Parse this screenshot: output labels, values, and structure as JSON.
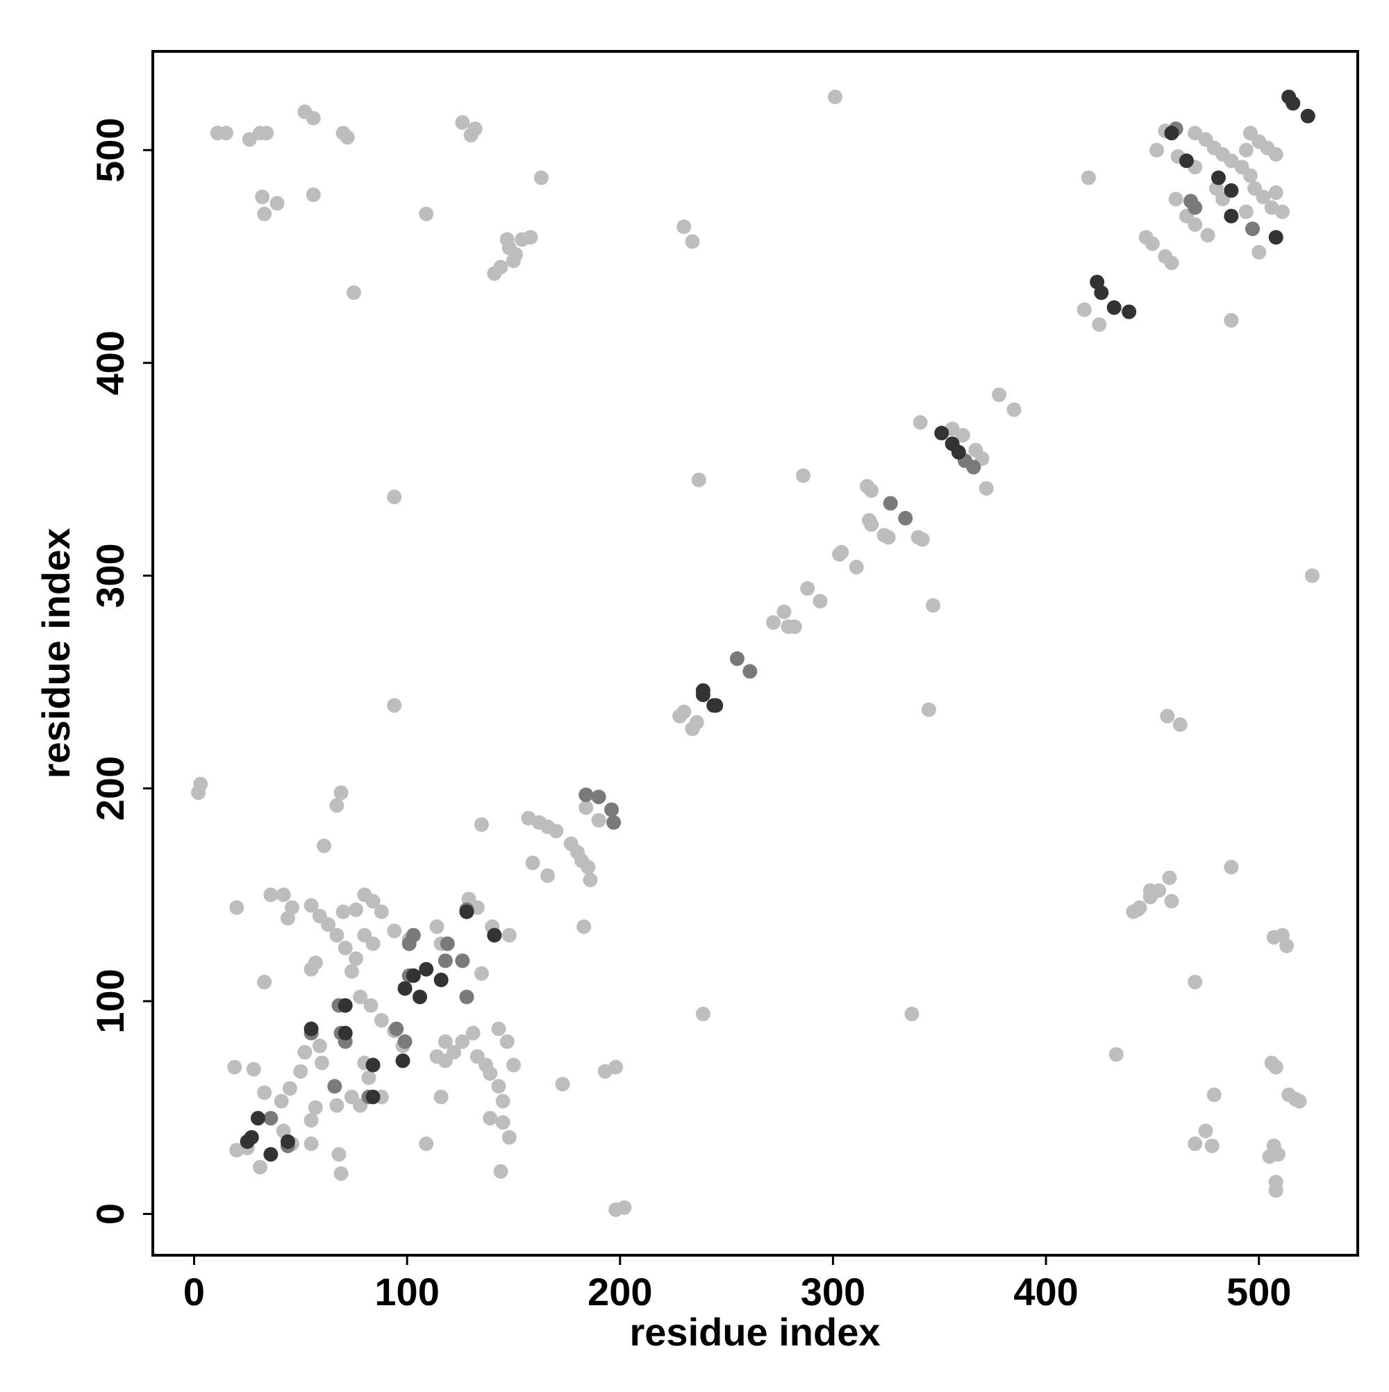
{
  "chart_data": {
    "type": "scatter",
    "xlabel": "residue index",
    "ylabel": "residue index",
    "xlim": [
      -19.4,
      546.4
    ],
    "ylim": [
      -19.4,
      546.4
    ],
    "xticks": [
      0,
      100,
      200,
      300,
      400,
      500
    ],
    "yticks": [
      0,
      100,
      200,
      300,
      400,
      500
    ],
    "grid": false,
    "series": [
      {
        "color": "#bdbdbd",
        "x": [
          11,
          15,
          26,
          31,
          34,
          52,
          56,
          70,
          72,
          32,
          33,
          39,
          56,
          109,
          126,
          132,
          130,
          163,
          141,
          144,
          147,
          151,
          154,
          158,
          150,
          148,
          75,
          230,
          234,
          301,
          94,
          94,
          2,
          3,
          69,
          67,
          61,
          20,
          33,
          19,
          28,
          68,
          69,
          109,
          144,
          173,
          193,
          198,
          198,
          202,
          135,
          183,
          239,
          337,
          433,
          487,
          470,
          507,
          511,
          513,
          479,
          475,
          470,
          478,
          506,
          508,
          514,
          517,
          519,
          507,
          505,
          509,
          508,
          508,
          457,
          463,
          345,
          347,
          237,
          286,
          341,
          525,
          378,
          385,
          372,
          316,
          318,
          318,
          317,
          324,
          326,
          340,
          342,
          304,
          303,
          311,
          288,
          294,
          272,
          277,
          279,
          282,
          228,
          230,
          234,
          236,
          418,
          425,
          420,
          487,
          447,
          450,
          456,
          459,
          452,
          500,
          441,
          444,
          449,
          453,
          458,
          459,
          449,
          443,
          184,
          190,
          186,
          159,
          166,
          157,
          162,
          166,
          170,
          177,
          180,
          182,
          185,
          456,
          470,
          475,
          479,
          483,
          487,
          492,
          496,
          498,
          502,
          506,
          511,
          496,
          500,
          504,
          508,
          462,
          461,
          466,
          470,
          476,
          494,
          497,
          483,
          480,
          494,
          508,
          470,
          356,
          361,
          367,
          370,
          36,
          42,
          46,
          44,
          55,
          59,
          63,
          67,
          71,
          76,
          74,
          70,
          76,
          80,
          84,
          88,
          94,
          101,
          55,
          57,
          80,
          84,
          114,
          118,
          122,
          126,
          131,
          133,
          137,
          139,
          143,
          145,
          118,
          143,
          147,
          150,
          139,
          145,
          148,
          116,
          114,
          116,
          129,
          133,
          140,
          148,
          135,
          33,
          41,
          45,
          42,
          46,
          55,
          55,
          57,
          50,
          52,
          60,
          20,
          25,
          31,
          67,
          74,
          78,
          78,
          83,
          88,
          94,
          98,
          80,
          82,
          88,
          59
        ],
        "values": [
          508,
          508,
          505,
          508,
          508,
          518,
          515,
          508,
          506,
          478,
          470,
          475,
          479,
          470,
          513,
          510,
          507,
          487,
          442,
          445,
          458,
          451,
          458,
          459,
          448,
          454,
          433,
          464,
          457,
          525,
          337,
          239,
          198,
          202,
          198,
          192,
          173,
          144,
          109,
          69,
          68,
          28,
          19,
          33,
          20,
          61,
          67,
          69,
          2,
          3,
          183,
          135,
          94,
          94,
          75,
          163,
          109,
          130,
          131,
          126,
          56,
          39,
          33,
          32,
          71,
          69,
          56,
          54,
          53,
          32,
          27,
          28,
          15,
          11,
          234,
          230,
          237,
          286,
          345,
          347,
          372,
          300,
          385,
          378,
          341,
          342,
          340,
          324,
          326,
          319,
          318,
          318,
          317,
          311,
          310,
          304,
          294,
          288,
          278,
          283,
          276,
          276,
          234,
          236,
          228,
          231,
          425,
          418,
          487,
          420,
          459,
          456,
          450,
          447,
          500,
          452,
          142,
          144,
          149,
          152,
          158,
          147,
          152,
          143,
          191,
          185,
          157,
          165,
          159,
          186,
          184,
          182,
          180,
          174,
          170,
          166,
          163,
          509,
          508,
          505,
          501,
          498,
          495,
          492,
          488,
          482,
          478,
          473,
          471,
          508,
          504,
          501,
          498,
          497,
          477,
          469,
          465,
          460,
          471,
          463,
          477,
          482,
          500,
          480,
          492,
          369,
          366,
          359,
          355,
          150,
          150,
          144,
          139,
          145,
          140,
          136,
          131,
          125,
          120,
          114,
          142,
          143,
          150,
          147,
          142,
          133,
          129,
          115,
          118,
          131,
          127,
          74,
          72,
          76,
          81,
          85,
          74,
          70,
          66,
          60,
          53,
          81,
          87,
          81,
          70,
          45,
          43,
          36,
          55,
          135,
          127,
          148,
          144,
          135,
          131,
          113,
          57,
          53,
          59,
          39,
          33,
          33,
          44,
          50,
          67,
          76,
          71,
          30,
          31,
          22,
          51,
          55,
          51,
          102,
          98,
          91,
          86,
          79,
          71,
          64,
          55,
          79
        ]
      },
      {
        "color": "#7a7a7a",
        "x": [
          55,
          69,
          68,
          95,
          101,
          119,
          126,
          128,
          128,
          141,
          118,
          36,
          44,
          66,
          71,
          82,
          101,
          99,
          103,
          461,
          468,
          470,
          497,
          255,
          261,
          327,
          334,
          184,
          190,
          196,
          197,
          362,
          366
        ],
        "values": [
          85,
          85,
          98,
          87,
          127,
          127,
          119,
          102,
          143,
          131,
          119,
          45,
          32,
          60,
          81,
          55,
          112,
          81,
          131,
          510,
          476,
          473,
          463,
          261,
          255,
          334,
          327,
          197,
          196,
          190,
          184,
          354,
          351
        ]
      },
      {
        "color": "#333333",
        "x": [
          27,
          25,
          36,
          30,
          44,
          55,
          71,
          71,
          84,
          84,
          98,
          99,
          103,
          109,
          116,
          106,
          128,
          141,
          514,
          516,
          523,
          459,
          466,
          481,
          487,
          487,
          508,
          424,
          426,
          432,
          439,
          351,
          356,
          359,
          239,
          239,
          244,
          245
        ],
        "values": [
          36,
          34,
          28,
          45,
          34,
          87,
          98,
          85,
          70,
          55,
          72,
          106,
          112,
          115,
          110,
          102,
          142,
          131,
          525,
          522,
          516,
          508,
          495,
          487,
          481,
          469,
          459,
          438,
          433,
          426,
          424,
          367,
          362,
          358,
          246,
          244,
          239,
          239
        ]
      }
    ]
  }
}
